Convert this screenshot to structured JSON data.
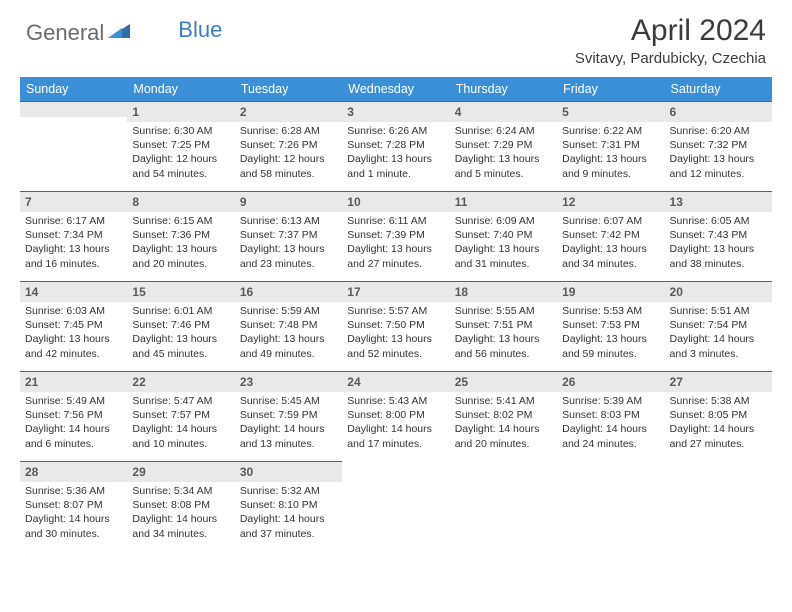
{
  "logo": {
    "general": "General",
    "blue": "Blue"
  },
  "title": "April 2024",
  "location": "Svitavy, Pardubicky, Czechia",
  "day_headers": [
    "Sunday",
    "Monday",
    "Tuesday",
    "Wednesday",
    "Thursday",
    "Friday",
    "Saturday"
  ],
  "colors": {
    "header_bg": "#3b8fd6",
    "header_text": "#ffffff",
    "daynum_bg": "#e9e9e9",
    "rule": "#2f6ea8",
    "text": "#333333",
    "title_text": "#3b3b3b",
    "logo_gray": "#6b6b6b",
    "logo_blue": "#3a7fc4"
  },
  "weeks": [
    [
      null,
      {
        "n": "1",
        "sr": "Sunrise: 6:30 AM",
        "ss": "Sunset: 7:25 PM",
        "d1": "Daylight: 12 hours",
        "d2": "and 54 minutes."
      },
      {
        "n": "2",
        "sr": "Sunrise: 6:28 AM",
        "ss": "Sunset: 7:26 PM",
        "d1": "Daylight: 12 hours",
        "d2": "and 58 minutes."
      },
      {
        "n": "3",
        "sr": "Sunrise: 6:26 AM",
        "ss": "Sunset: 7:28 PM",
        "d1": "Daylight: 13 hours",
        "d2": "and 1 minute."
      },
      {
        "n": "4",
        "sr": "Sunrise: 6:24 AM",
        "ss": "Sunset: 7:29 PM",
        "d1": "Daylight: 13 hours",
        "d2": "and 5 minutes."
      },
      {
        "n": "5",
        "sr": "Sunrise: 6:22 AM",
        "ss": "Sunset: 7:31 PM",
        "d1": "Daylight: 13 hours",
        "d2": "and 9 minutes."
      },
      {
        "n": "6",
        "sr": "Sunrise: 6:20 AM",
        "ss": "Sunset: 7:32 PM",
        "d1": "Daylight: 13 hours",
        "d2": "and 12 minutes."
      }
    ],
    [
      {
        "n": "7",
        "sr": "Sunrise: 6:17 AM",
        "ss": "Sunset: 7:34 PM",
        "d1": "Daylight: 13 hours",
        "d2": "and 16 minutes."
      },
      {
        "n": "8",
        "sr": "Sunrise: 6:15 AM",
        "ss": "Sunset: 7:36 PM",
        "d1": "Daylight: 13 hours",
        "d2": "and 20 minutes."
      },
      {
        "n": "9",
        "sr": "Sunrise: 6:13 AM",
        "ss": "Sunset: 7:37 PM",
        "d1": "Daylight: 13 hours",
        "d2": "and 23 minutes."
      },
      {
        "n": "10",
        "sr": "Sunrise: 6:11 AM",
        "ss": "Sunset: 7:39 PM",
        "d1": "Daylight: 13 hours",
        "d2": "and 27 minutes."
      },
      {
        "n": "11",
        "sr": "Sunrise: 6:09 AM",
        "ss": "Sunset: 7:40 PM",
        "d1": "Daylight: 13 hours",
        "d2": "and 31 minutes."
      },
      {
        "n": "12",
        "sr": "Sunrise: 6:07 AM",
        "ss": "Sunset: 7:42 PM",
        "d1": "Daylight: 13 hours",
        "d2": "and 34 minutes."
      },
      {
        "n": "13",
        "sr": "Sunrise: 6:05 AM",
        "ss": "Sunset: 7:43 PM",
        "d1": "Daylight: 13 hours",
        "d2": "and 38 minutes."
      }
    ],
    [
      {
        "n": "14",
        "sr": "Sunrise: 6:03 AM",
        "ss": "Sunset: 7:45 PM",
        "d1": "Daylight: 13 hours",
        "d2": "and 42 minutes."
      },
      {
        "n": "15",
        "sr": "Sunrise: 6:01 AM",
        "ss": "Sunset: 7:46 PM",
        "d1": "Daylight: 13 hours",
        "d2": "and 45 minutes."
      },
      {
        "n": "16",
        "sr": "Sunrise: 5:59 AM",
        "ss": "Sunset: 7:48 PM",
        "d1": "Daylight: 13 hours",
        "d2": "and 49 minutes."
      },
      {
        "n": "17",
        "sr": "Sunrise: 5:57 AM",
        "ss": "Sunset: 7:50 PM",
        "d1": "Daylight: 13 hours",
        "d2": "and 52 minutes."
      },
      {
        "n": "18",
        "sr": "Sunrise: 5:55 AM",
        "ss": "Sunset: 7:51 PM",
        "d1": "Daylight: 13 hours",
        "d2": "and 56 minutes."
      },
      {
        "n": "19",
        "sr": "Sunrise: 5:53 AM",
        "ss": "Sunset: 7:53 PM",
        "d1": "Daylight: 13 hours",
        "d2": "and 59 minutes."
      },
      {
        "n": "20",
        "sr": "Sunrise: 5:51 AM",
        "ss": "Sunset: 7:54 PM",
        "d1": "Daylight: 14 hours",
        "d2": "and 3 minutes."
      }
    ],
    [
      {
        "n": "21",
        "sr": "Sunrise: 5:49 AM",
        "ss": "Sunset: 7:56 PM",
        "d1": "Daylight: 14 hours",
        "d2": "and 6 minutes."
      },
      {
        "n": "22",
        "sr": "Sunrise: 5:47 AM",
        "ss": "Sunset: 7:57 PM",
        "d1": "Daylight: 14 hours",
        "d2": "and 10 minutes."
      },
      {
        "n": "23",
        "sr": "Sunrise: 5:45 AM",
        "ss": "Sunset: 7:59 PM",
        "d1": "Daylight: 14 hours",
        "d2": "and 13 minutes."
      },
      {
        "n": "24",
        "sr": "Sunrise: 5:43 AM",
        "ss": "Sunset: 8:00 PM",
        "d1": "Daylight: 14 hours",
        "d2": "and 17 minutes."
      },
      {
        "n": "25",
        "sr": "Sunrise: 5:41 AM",
        "ss": "Sunset: 8:02 PM",
        "d1": "Daylight: 14 hours",
        "d2": "and 20 minutes."
      },
      {
        "n": "26",
        "sr": "Sunrise: 5:39 AM",
        "ss": "Sunset: 8:03 PM",
        "d1": "Daylight: 14 hours",
        "d2": "and 24 minutes."
      },
      {
        "n": "27",
        "sr": "Sunrise: 5:38 AM",
        "ss": "Sunset: 8:05 PM",
        "d1": "Daylight: 14 hours",
        "d2": "and 27 minutes."
      }
    ],
    [
      {
        "n": "28",
        "sr": "Sunrise: 5:36 AM",
        "ss": "Sunset: 8:07 PM",
        "d1": "Daylight: 14 hours",
        "d2": "and 30 minutes."
      },
      {
        "n": "29",
        "sr": "Sunrise: 5:34 AM",
        "ss": "Sunset: 8:08 PM",
        "d1": "Daylight: 14 hours",
        "d2": "and 34 minutes."
      },
      {
        "n": "30",
        "sr": "Sunrise: 5:32 AM",
        "ss": "Sunset: 8:10 PM",
        "d1": "Daylight: 14 hours",
        "d2": "and 37 minutes."
      },
      null,
      null,
      null,
      null
    ]
  ]
}
